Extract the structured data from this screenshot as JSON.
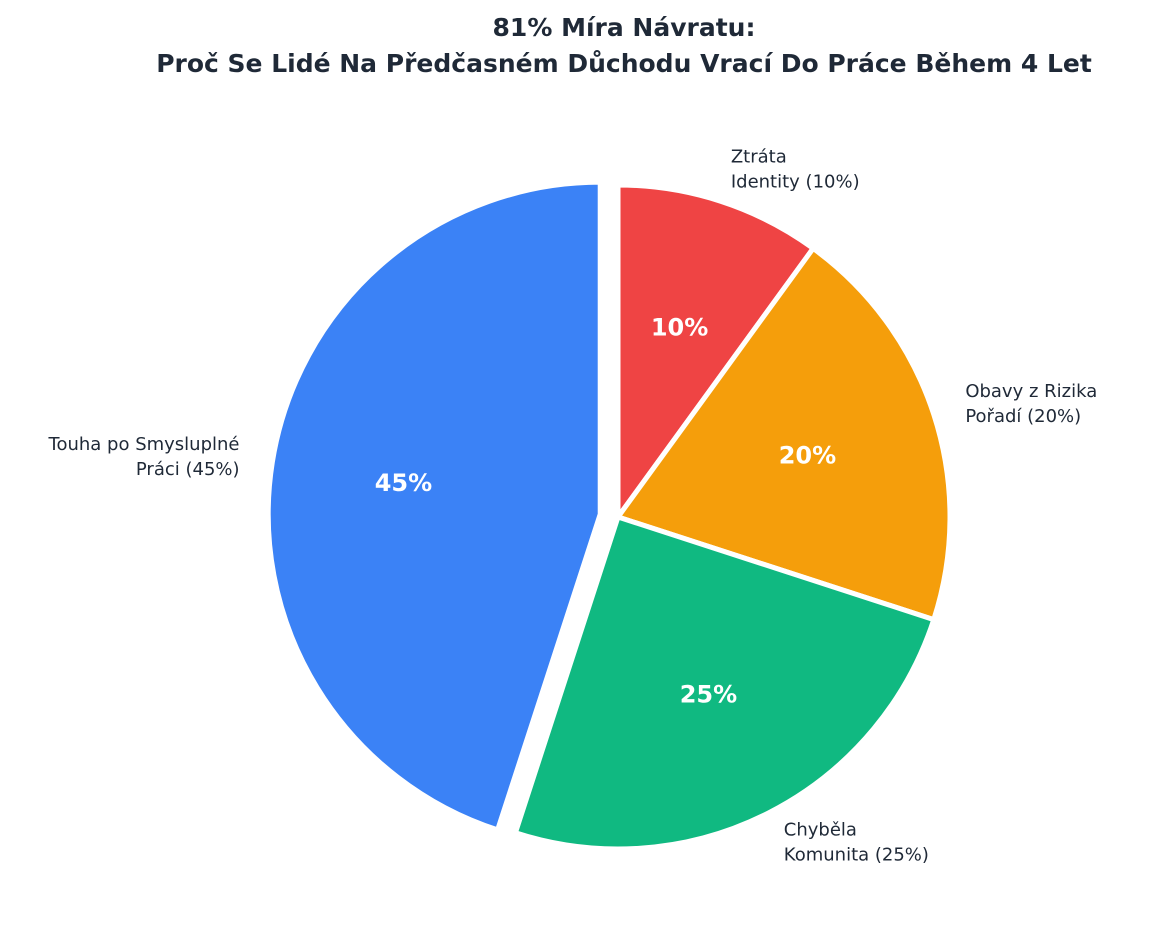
{
  "chart_data": {
    "type": "pie",
    "title_line1": "81% Míra Návratu:",
    "title_line2": "Proč Se Lidé Na Předčasném Důchodu Vrací Do Práce Během 4 Let",
    "start_angle_deg": 90,
    "direction": "clockwise",
    "legend": "none",
    "slices": [
      {
        "key": "identity",
        "label_lines": [
          "Ztráta",
          "Identity (10%)"
        ],
        "value": 10,
        "pct_text": "10%",
        "color": "#ef4444",
        "exploded": false
      },
      {
        "key": "risk",
        "label_lines": [
          "Obavy z Rizika",
          "Pořadí (20%)"
        ],
        "value": 20,
        "pct_text": "20%",
        "color": "#f59e0b",
        "exploded": false
      },
      {
        "key": "community",
        "label_lines": [
          "Chyběla",
          "Komunita (25%)"
        ],
        "value": 25,
        "pct_text": "25%",
        "color": "#10b981",
        "exploded": false
      },
      {
        "key": "meaningful-work",
        "label_lines": [
          "Touha po Smysluplné",
          "Práci (45%)"
        ],
        "value": 45,
        "pct_text": "45%",
        "color": "#3b82f6",
        "exploded": true
      }
    ]
  }
}
